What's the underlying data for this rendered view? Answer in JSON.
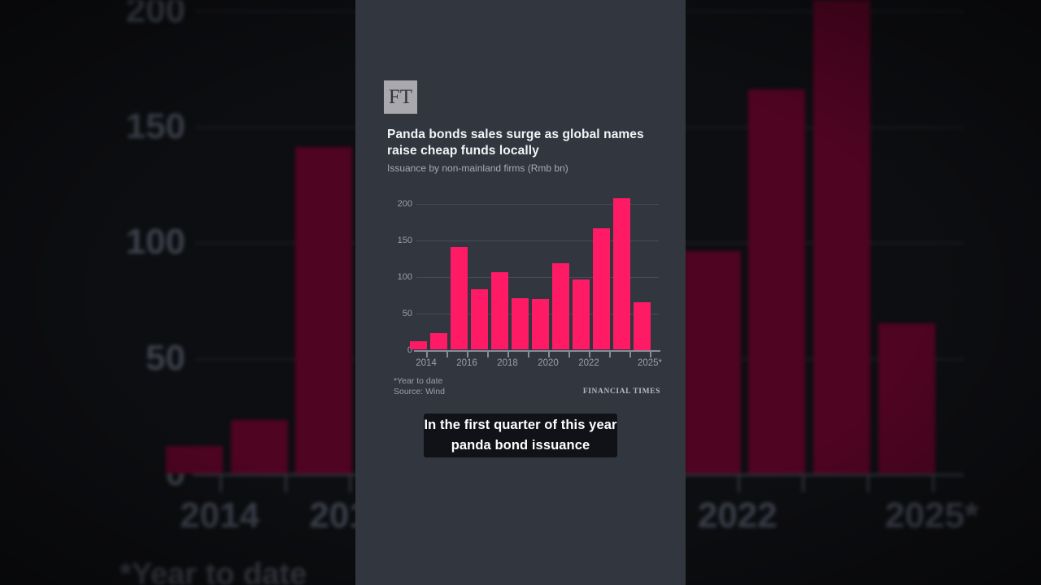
{
  "brand": {
    "logo_text": "FT",
    "watermark": "FINANCIAL TIMES"
  },
  "header": {
    "title": "Panda bonds sales surge as global names raise cheap funds locally",
    "subtitle": "Issuance by non-mainland firms (Rmb bn)"
  },
  "chart_data": {
    "type": "bar",
    "categories": [
      "2014",
      "2015",
      "2016",
      "2017",
      "2018",
      "2019",
      "2020",
      "2021",
      "2022",
      "2023",
      "2024",
      "2025*"
    ],
    "values": [
      12,
      23,
      141,
      83,
      106,
      71,
      69,
      118,
      96,
      166,
      207,
      65
    ],
    "title": "Panda bonds sales surge as global names raise cheap funds locally",
    "subtitle": "Issuance by non-mainland firms (Rmb bn)",
    "xlabel": "",
    "ylabel": "",
    "ylim": [
      0,
      215
    ],
    "yticks": [
      0,
      50,
      100,
      150,
      200
    ],
    "xticks_shown": [
      "2014",
      "2016",
      "2018",
      "2020",
      "2022",
      "2025*"
    ],
    "grid": "horizontal",
    "legend": "none",
    "bar_color": "#ff1a66",
    "background_bar_color": "#4f0421"
  },
  "footnote": {
    "note": "*Year to date",
    "source": "Source: Wind"
  },
  "caption": {
    "line1": "In the first quarter of this year",
    "line2": "panda bond issuance"
  },
  "colors": {
    "panel_background": "#32363f",
    "outer_background": "#0d0e11",
    "accent_pink": "#ff1a66",
    "muted_maroon": "#4f0421",
    "title_text": "#f3f4f6",
    "subtitle_text": "#a6abb5",
    "axis_text": "#9aa0ac"
  }
}
